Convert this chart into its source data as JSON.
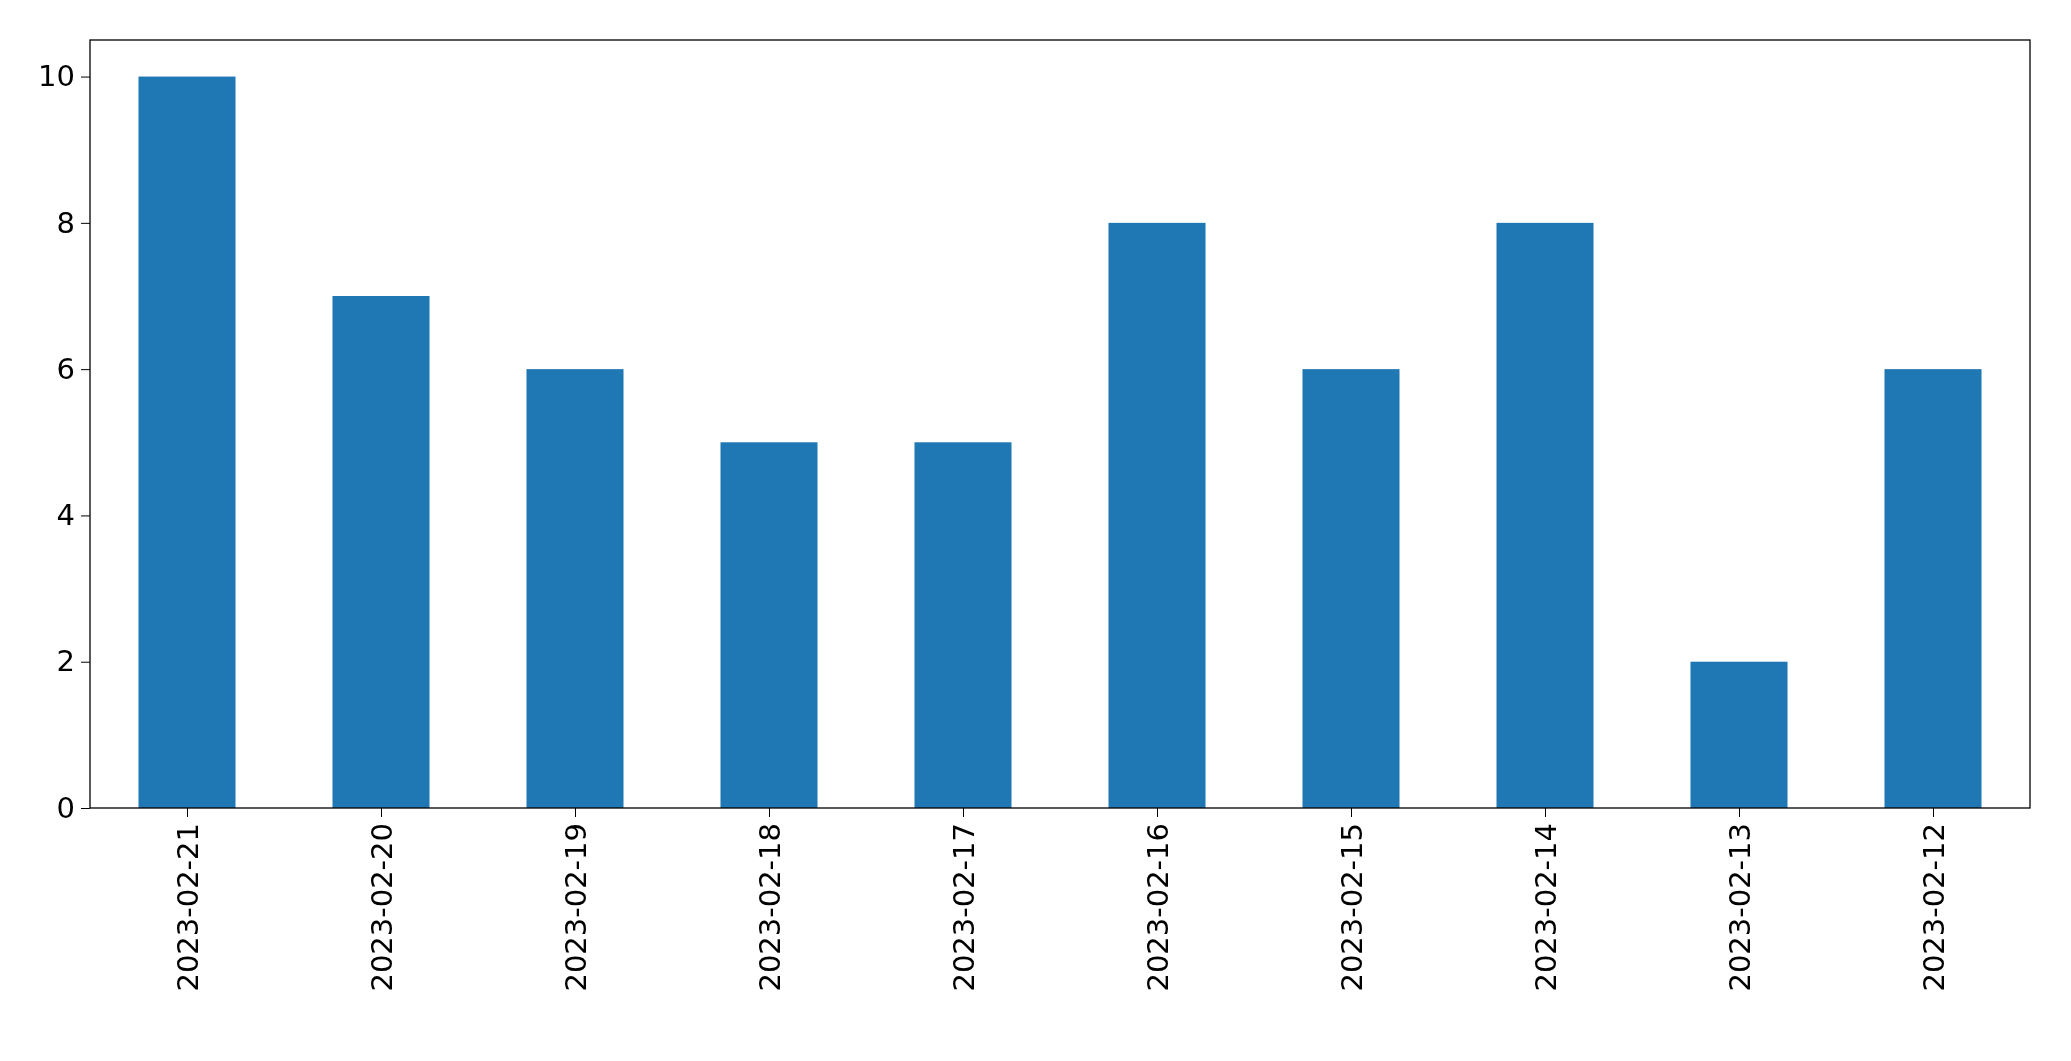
{
  "chart_data": {
    "type": "bar",
    "categories": [
      "2023-02-21",
      "2023-02-20",
      "2023-02-19",
      "2023-02-18",
      "2023-02-17",
      "2023-02-16",
      "2023-02-15",
      "2023-02-14",
      "2023-02-13",
      "2023-02-12"
    ],
    "values": [
      10,
      7,
      6,
      5,
      5,
      8,
      6,
      8,
      2,
      6
    ],
    "color": "#1f77b4",
    "ylim": [
      0,
      10.5
    ],
    "yticks": [
      0,
      2,
      4,
      6,
      8,
      10
    ],
    "grid": false
  }
}
